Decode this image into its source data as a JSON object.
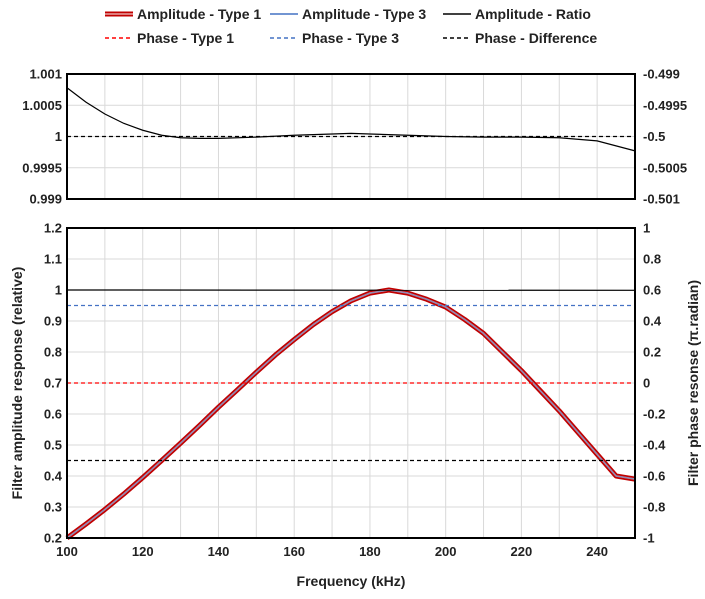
{
  "chart_data": {
    "type": "line",
    "xlabel": "Frequency (kHz)",
    "ylabel_left": "Filter amplitude response (relative)",
    "ylabel_right": "Filter phase resonse (π.radian)",
    "x_ticks": [
      "100",
      "120",
      "140",
      "160",
      "180",
      "200",
      "220",
      "240"
    ],
    "xlim": [
      100,
      250
    ],
    "grid": true,
    "legend_position": "top",
    "legend": [
      {
        "name": "Amplitude - Type 1",
        "color": "#c00000",
        "style": "double"
      },
      {
        "name": "Amplitude - Type 3",
        "color": "#4472c4",
        "style": "solid"
      },
      {
        "name": "Amplitude - Ratio",
        "color": "#000000",
        "style": "solid"
      },
      {
        "name": "Phase - Type 1",
        "color": "#ff0000",
        "style": "dashed"
      },
      {
        "name": "Phase - Type 3",
        "color": "#4472c4",
        "style": "dashed"
      },
      {
        "name": "Phase - Difference",
        "color": "#000000",
        "style": "dashed"
      }
    ],
    "top_panel": {
      "ylim_left": [
        0.999,
        1.001
      ],
      "ylim_right": [
        -0.501,
        -0.499
      ],
      "y_ticks_left": [
        "0.999",
        "0.9995",
        "1",
        "1.0005",
        "1.001"
      ],
      "y_ticks_right": [
        "-0.501",
        "-0.5005",
        "-0.5",
        "-0.4995",
        "-0.499"
      ],
      "series": [
        {
          "name": "Amplitude - Ratio",
          "axis": "left",
          "color": "#000000",
          "dash": "",
          "x": [
            100,
            105,
            110,
            115,
            120,
            125,
            130,
            135,
            140,
            150,
            160,
            170,
            175,
            180,
            190,
            200,
            210,
            220,
            230,
            240,
            250
          ],
          "y": [
            1.00078,
            1.00055,
            1.00036,
            1.00021,
            1.0001,
            1.00002,
            0.99998,
            0.99997,
            0.99997,
            0.99999,
            1.00002,
            1.00004,
            1.00005,
            1.00004,
            1.00002,
            1.0,
            0.99999,
            0.99999,
            0.99998,
            0.99993,
            0.99977
          ]
        },
        {
          "name": "Phase - Difference",
          "axis": "right",
          "color": "#000000",
          "dash": "4 3",
          "x": [
            100,
            250
          ],
          "y": [
            -0.5,
            -0.5
          ]
        }
      ]
    },
    "bottom_panel": {
      "ylim_left": [
        0.2,
        1.2
      ],
      "ylim_right": [
        -1,
        1
      ],
      "y_ticks_left": [
        "0.2",
        "0.3",
        "0.4",
        "0.5",
        "0.6",
        "0.7",
        "0.8",
        "0.9",
        "1",
        "1.1",
        "1.2"
      ],
      "y_ticks_right": [
        "-1",
        "-0.8",
        "-0.6",
        "-0.4",
        "-0.2",
        "0",
        "0.2",
        "0.4",
        "0.6",
        "0.8",
        "1"
      ],
      "series": [
        {
          "name": "Amplitude - Type 1",
          "axis": "left",
          "color": "#c00000",
          "dash": "",
          "double": true,
          "x": [
            100,
            105,
            110,
            115,
            120,
            125,
            130,
            135,
            140,
            145,
            150,
            155,
            160,
            165,
            170,
            175,
            180,
            185,
            190,
            195,
            200,
            205,
            210,
            215,
            220,
            225,
            230,
            235,
            240,
            245,
            250
          ],
          "y": [
            0.2,
            0.245,
            0.292,
            0.342,
            0.395,
            0.45,
            0.506,
            0.563,
            0.622,
            0.678,
            0.735,
            0.79,
            0.84,
            0.888,
            0.93,
            0.965,
            0.99,
            1.0,
            0.99,
            0.97,
            0.945,
            0.905,
            0.86,
            0.8,
            0.74,
            0.675,
            0.61,
            0.54,
            0.47,
            0.4,
            0.39
          ]
        },
        {
          "name": "Amplitude - Type 3",
          "axis": "left",
          "color": "#4472c4",
          "dash": "",
          "x": [
            100,
            105,
            110,
            115,
            120,
            125,
            130,
            135,
            140,
            145,
            150,
            155,
            160,
            165,
            170,
            175,
            180,
            185,
            190,
            195,
            200,
            205,
            210,
            215,
            220,
            225,
            230,
            235,
            240,
            245,
            250
          ],
          "y": [
            0.2,
            0.245,
            0.292,
            0.342,
            0.395,
            0.45,
            0.506,
            0.563,
            0.622,
            0.678,
            0.735,
            0.79,
            0.84,
            0.888,
            0.93,
            0.965,
            0.99,
            1.0,
            0.99,
            0.97,
            0.945,
            0.905,
            0.86,
            0.8,
            0.74,
            0.675,
            0.61,
            0.54,
            0.47,
            0.4,
            0.39
          ]
        },
        {
          "name": "Amplitude - Ratio",
          "axis": "left",
          "color": "#000000",
          "dash": "",
          "x": [
            100,
            250
          ],
          "y": [
            1.0,
            0.999
          ]
        },
        {
          "name": "Phase - Type 1",
          "axis": "right",
          "color": "#ff0000",
          "dash": "4 3",
          "x": [
            100,
            250
          ],
          "y": [
            0,
            0
          ]
        },
        {
          "name": "Phase - Type 3",
          "axis": "right",
          "color": "#4472c4",
          "dash": "4 3",
          "x": [
            100,
            250
          ],
          "y": [
            0.5,
            0.5
          ]
        },
        {
          "name": "Phase - Difference",
          "axis": "right",
          "color": "#000000",
          "dash": "4 3",
          "x": [
            100,
            250
          ],
          "y": [
            -0.5,
            -0.5
          ]
        }
      ]
    }
  }
}
